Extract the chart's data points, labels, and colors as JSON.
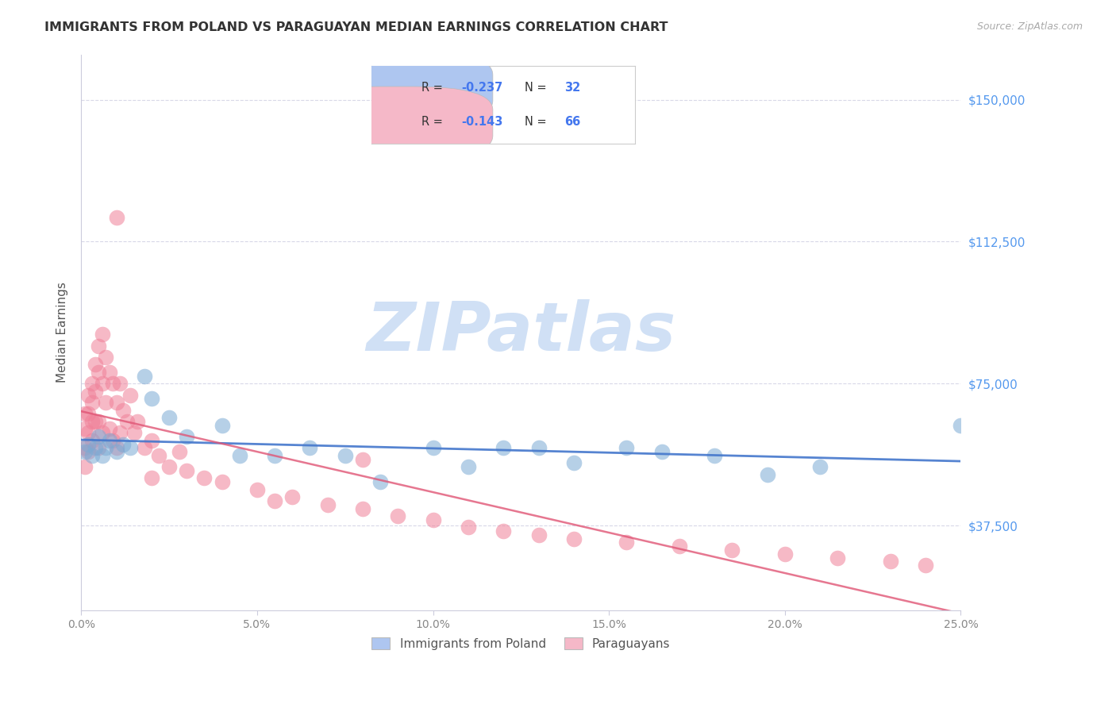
{
  "title": "IMMIGRANTS FROM POLAND VS PARAGUAYAN MEDIAN EARNINGS CORRELATION CHART",
  "source": "Source: ZipAtlas.com",
  "ylabel": "Median Earnings",
  "y_ticks": [
    37500,
    75000,
    112500,
    150000
  ],
  "y_tick_labels": [
    "$37,500",
    "$75,000",
    "$112,500",
    "$150,000"
  ],
  "x_min": 0.0,
  "x_max": 0.25,
  "y_min": 15000,
  "y_max": 162000,
  "legend_entries": [
    {
      "label": "Immigrants from Poland",
      "R": "-0.237",
      "N": "32",
      "color": "#aec6f0"
    },
    {
      "label": "Paraguayans",
      "R": "-0.143",
      "N": "66",
      "color": "#f5b8c8"
    }
  ],
  "blue_scatter_color": "#7baad4",
  "pink_scatter_color": "#f08098",
  "blue_line_color": "#4477cc",
  "pink_line_color": "#e05575",
  "watermark_text": "ZIPatlas",
  "watermark_color": "#d0e0f5",
  "background_color": "#ffffff",
  "grid_color": "#d8d8e8",
  "axis_color": "#ccccdd",
  "right_label_color": "#5599ee",
  "legend_value_color": "#4477ee",
  "poland_x": [
    0.001,
    0.002,
    0.003,
    0.004,
    0.005,
    0.006,
    0.007,
    0.008,
    0.01,
    0.012,
    0.014,
    0.018,
    0.02,
    0.025,
    0.03,
    0.04,
    0.045,
    0.055,
    0.065,
    0.075,
    0.085,
    0.1,
    0.11,
    0.12,
    0.13,
    0.14,
    0.155,
    0.165,
    0.18,
    0.195,
    0.21,
    0.25
  ],
  "poland_y": [
    57000,
    59000,
    56000,
    58000,
    61000,
    56000,
    58000,
    60000,
    57000,
    59000,
    58000,
    77000,
    71000,
    66000,
    61000,
    64000,
    56000,
    56000,
    58000,
    56000,
    49000,
    58000,
    53000,
    58000,
    58000,
    54000,
    58000,
    57000,
    56000,
    51000,
    53000,
    64000
  ],
  "paraguay_x": [
    0.001,
    0.001,
    0.001,
    0.001,
    0.002,
    0.002,
    0.002,
    0.002,
    0.003,
    0.003,
    0.003,
    0.003,
    0.004,
    0.004,
    0.004,
    0.005,
    0.005,
    0.005,
    0.005,
    0.006,
    0.006,
    0.006,
    0.007,
    0.007,
    0.008,
    0.008,
    0.009,
    0.009,
    0.01,
    0.01,
    0.011,
    0.011,
    0.012,
    0.013,
    0.014,
    0.015,
    0.016,
    0.018,
    0.02,
    0.02,
    0.022,
    0.025,
    0.028,
    0.03,
    0.035,
    0.04,
    0.05,
    0.055,
    0.06,
    0.07,
    0.08,
    0.09,
    0.1,
    0.11,
    0.12,
    0.13,
    0.14,
    0.155,
    0.17,
    0.185,
    0.2,
    0.215,
    0.23,
    0.24,
    0.01,
    0.08
  ],
  "paraguay_y": [
    67000,
    63000,
    58000,
    53000,
    72000,
    67000,
    62000,
    57000,
    75000,
    70000,
    65000,
    60000,
    80000,
    73000,
    65000,
    85000,
    78000,
    65000,
    58000,
    88000,
    75000,
    62000,
    82000,
    70000,
    78000,
    63000,
    75000,
    60000,
    70000,
    58000,
    75000,
    62000,
    68000,
    65000,
    72000,
    62000,
    65000,
    58000,
    60000,
    50000,
    56000,
    53000,
    57000,
    52000,
    50000,
    49000,
    47000,
    44000,
    45000,
    43000,
    42000,
    40000,
    39000,
    37000,
    36000,
    35000,
    34000,
    33000,
    32000,
    31000,
    30000,
    29000,
    28000,
    27000,
    119000,
    55000
  ]
}
